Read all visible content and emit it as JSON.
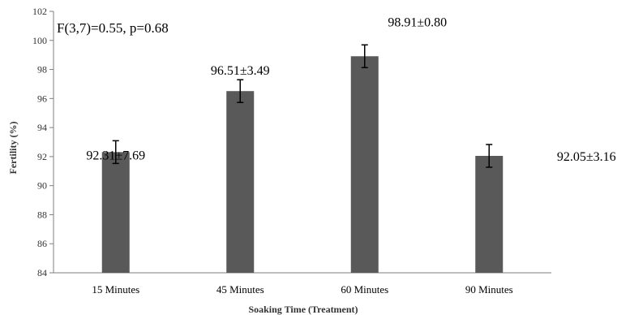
{
  "chart_data": {
    "type": "bar",
    "xlabel": "Soaking Time (Treatment)",
    "ylabel": "Fertility (%)",
    "ylim": [
      84,
      102
    ],
    "yticks": [
      84,
      86,
      88,
      90,
      92,
      94,
      96,
      98,
      100,
      102
    ],
    "categories": [
      "15 Minutes",
      "45 Minutes",
      "60 Minutes",
      "90 Minutes"
    ],
    "values": [
      92.31,
      96.51,
      98.91,
      92.05
    ],
    "errors": [
      7.69,
      3.49,
      0.8,
      3.16
    ],
    "value_labels": [
      "92.31±7.69",
      "96.51±3.49",
      "98.91±0.80",
      "92.05±3.16"
    ],
    "annotation": "F(3,7)=0.55, p=0.68",
    "grid": false,
    "legend": "none",
    "bar_color": "#595959"
  }
}
